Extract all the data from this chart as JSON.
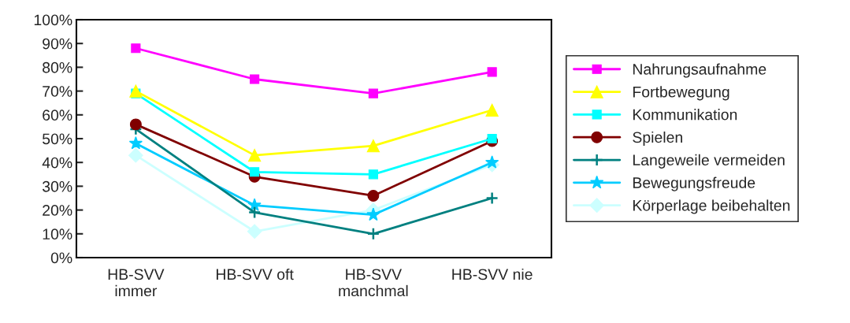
{
  "chart_data": {
    "type": "line",
    "categories": [
      "HB-SVV\nimmer",
      "HB-SVV oft",
      "HB-SVV\nmanchmal",
      "HB-SVV nie"
    ],
    "series": [
      {
        "name": "Nahrungsaufnahme",
        "color": "#ff00ff",
        "marker": "square",
        "values": [
          88,
          75,
          69,
          78
        ]
      },
      {
        "name": "Fortbewegung",
        "color": "#ffff00",
        "marker": "triangle",
        "values": [
          70,
          43,
          47,
          62
        ]
      },
      {
        "name": "Kommunikation",
        "color": "#00ffff",
        "marker": "square",
        "values": [
          69,
          36,
          35,
          50
        ]
      },
      {
        "name": "Spielen",
        "color": "#800000",
        "marker": "circle",
        "values": [
          56,
          34,
          26,
          49
        ]
      },
      {
        "name": "Langeweile vermeiden",
        "color": "#008080",
        "marker": "cross",
        "values": [
          54,
          19,
          10,
          25
        ]
      },
      {
        "name": "Bewegungsfreude",
        "color": "#00ccff",
        "marker": "star",
        "values": [
          48,
          22,
          18,
          40
        ]
      },
      {
        "name": "Körperlage beibehalten",
        "color": "#ccffff",
        "marker": "diamond",
        "values": [
          43,
          11,
          20,
          39
        ]
      }
    ],
    "ylim": [
      0,
      100
    ],
    "yticks": [
      {
        "value": 0,
        "label": "0%"
      },
      {
        "value": 10,
        "label": "10%"
      },
      {
        "value": 20,
        "label": "20%"
      },
      {
        "value": 30,
        "label": "30%"
      },
      {
        "value": 40,
        "label": "40%"
      },
      {
        "value": 50,
        "label": "50%"
      },
      {
        "value": 60,
        "label": "60%"
      },
      {
        "value": 70,
        "label": "70%"
      },
      {
        "value": 80,
        "label": "80%"
      },
      {
        "value": 90,
        "label": "90%"
      },
      {
        "value": 100,
        "label": "100%"
      }
    ],
    "grid": false,
    "legend": "right",
    "line_style": "solid"
  }
}
